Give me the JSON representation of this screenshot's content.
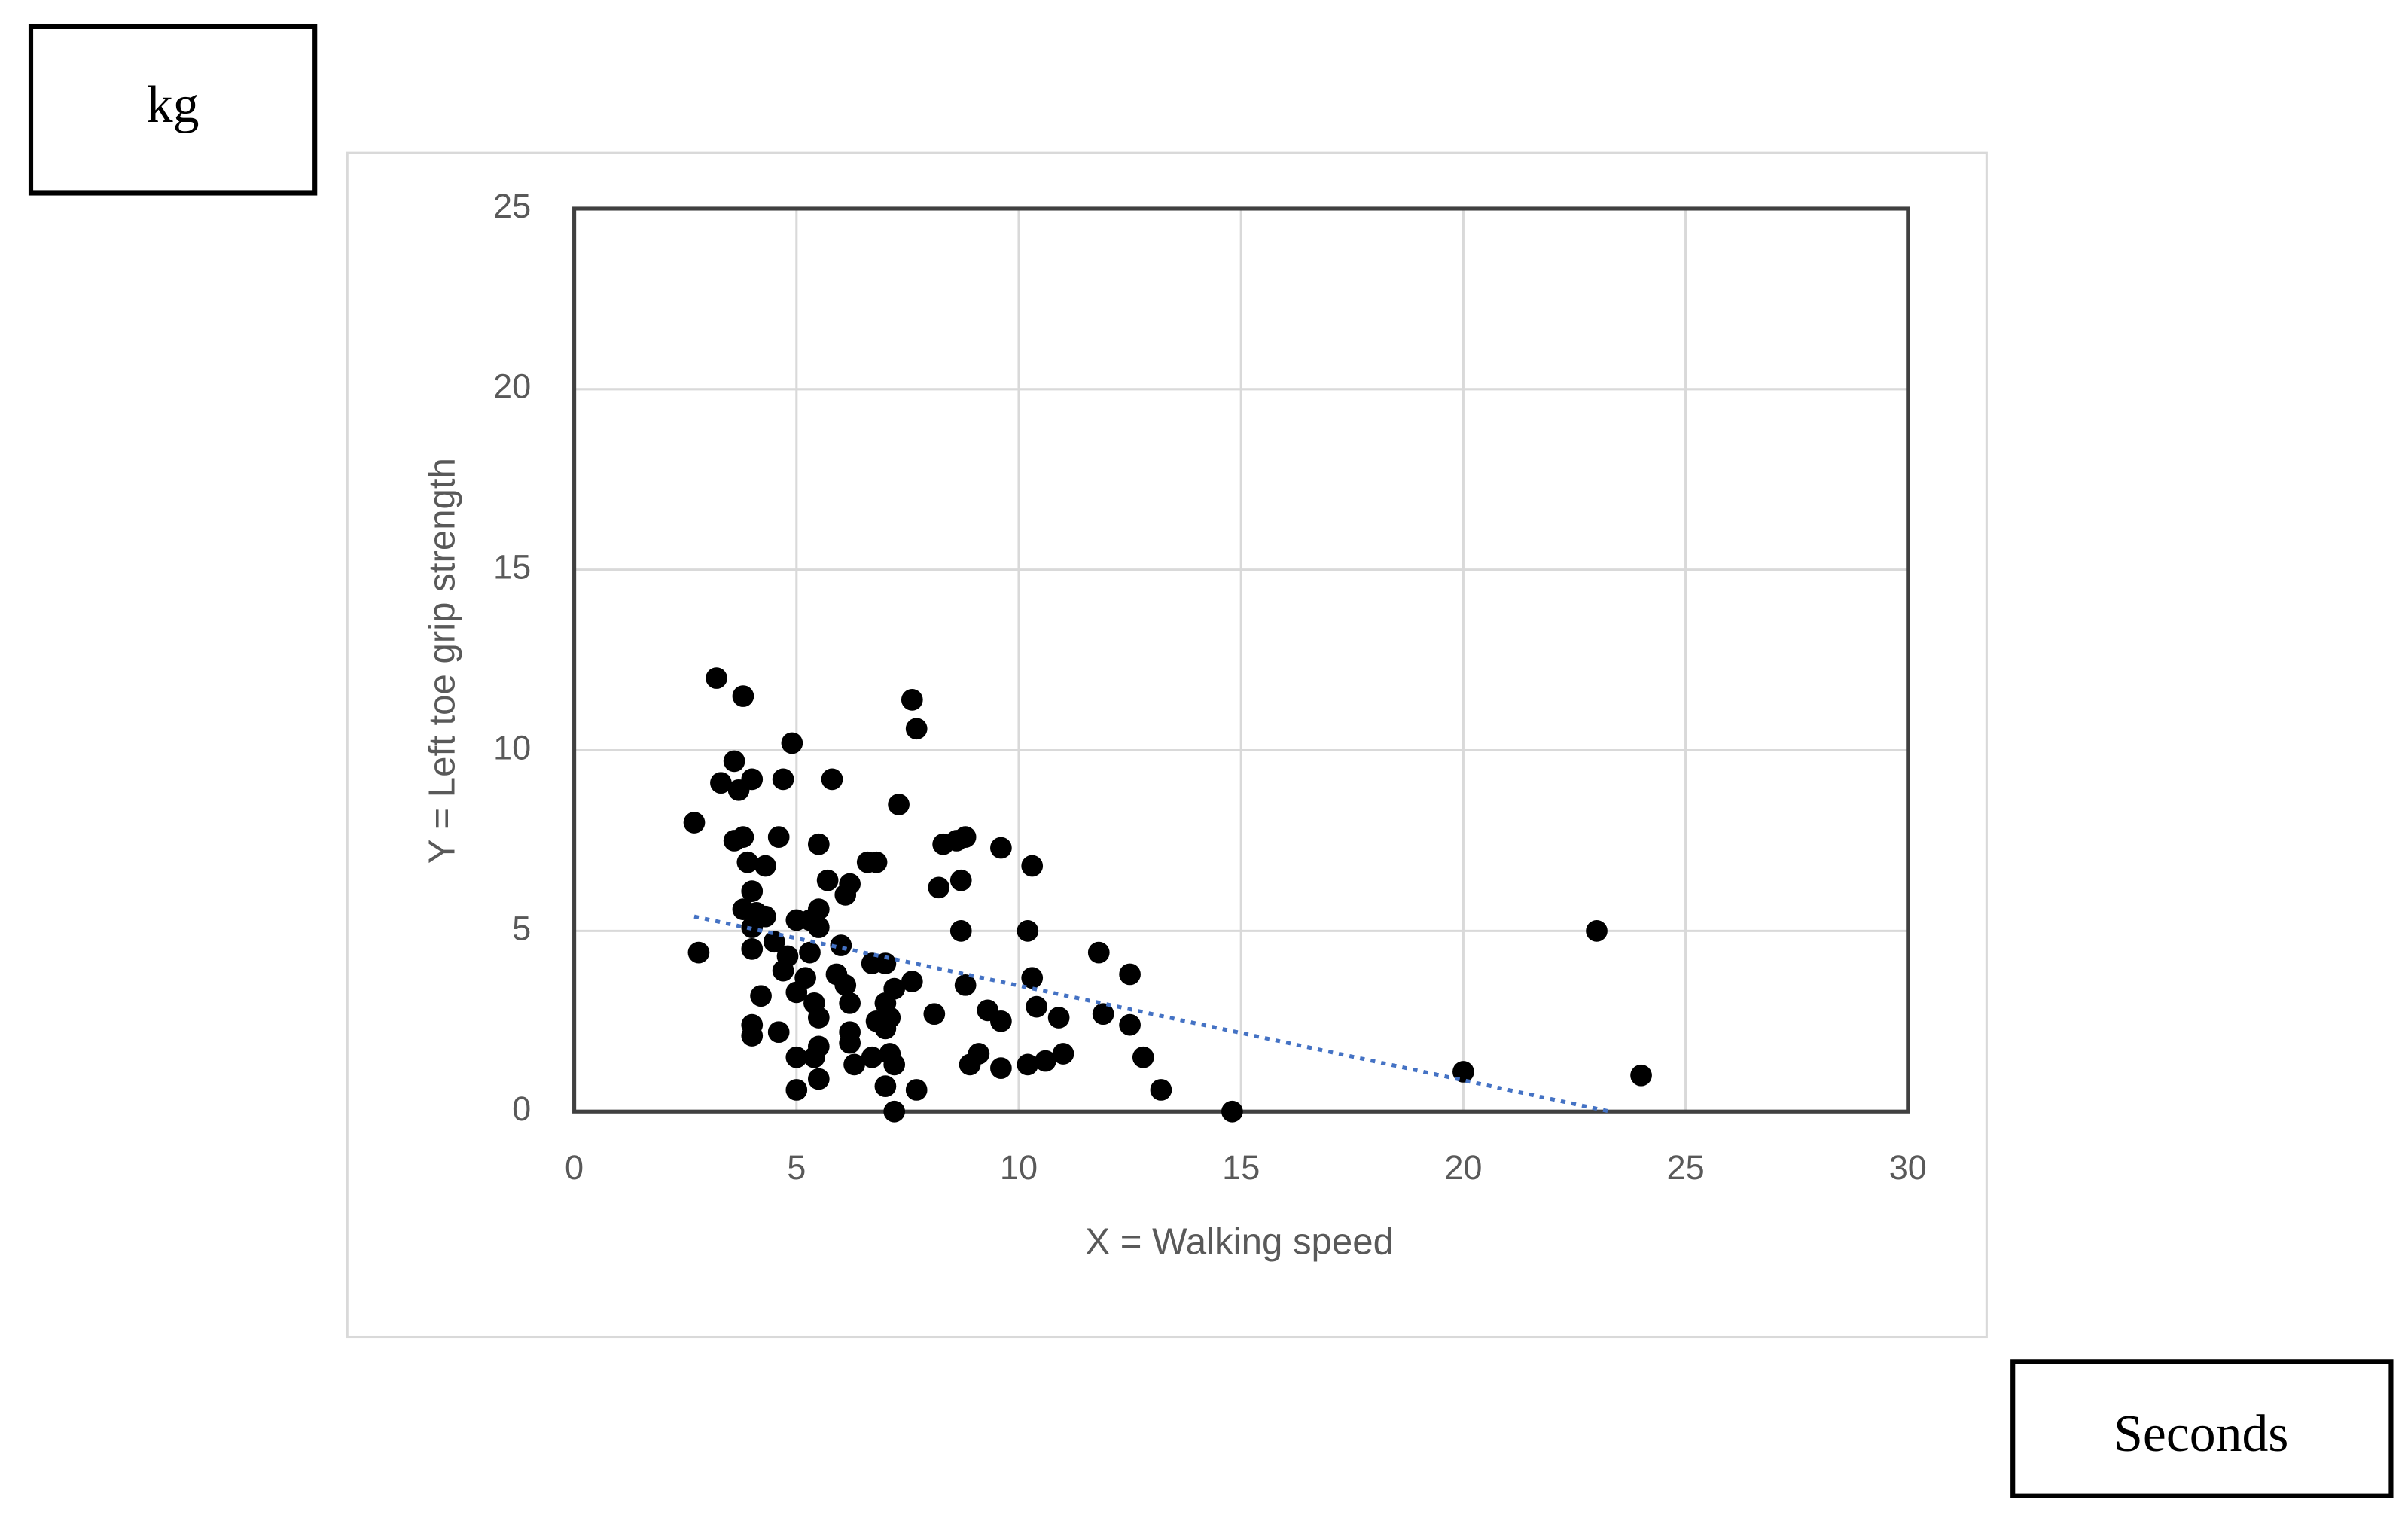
{
  "y_unit_label": "kg",
  "x_unit_label": "Seconds",
  "chart_data": {
    "type": "scatter",
    "xlabel": "X = Walking speed",
    "ylabel": "Y = Left toe grip strength",
    "xlim": [
      0,
      30
    ],
    "ylim": [
      0,
      25
    ],
    "xticks": [
      0,
      5,
      10,
      15,
      20,
      25,
      30
    ],
    "yticks": [
      0,
      5,
      10,
      15,
      20,
      25
    ],
    "grid": true,
    "series": [
      {
        "color": "#000000",
        "x": [
          3.2,
          3.8,
          7.6,
          7.7,
          4.9,
          3.6,
          3.3,
          4.0,
          4.7,
          5.8,
          3.7,
          7.3,
          2.7,
          3.6,
          3.8,
          4.6,
          5.5,
          8.3,
          8.6,
          8.8,
          9.6,
          10.3,
          3.9,
          4.3,
          6.6,
          6.8,
          5.7,
          6.2,
          6.1,
          8.2,
          8.7,
          4.0,
          3.8,
          4.1,
          4.3,
          5.5,
          5.0,
          5.3,
          5.5,
          4.0,
          8.7,
          10.2,
          23.0,
          2.8,
          4.0,
          4.5,
          4.8,
          5.3,
          6.0,
          6.7,
          7.0,
          11.8,
          4.7,
          5.2,
          5.9,
          6.1,
          7.6,
          7.2,
          8.8,
          10.3,
          12.5,
          4.2,
          5.0,
          5.4,
          6.2,
          7.0,
          9.3,
          10.4,
          10.9,
          11.9,
          4.0,
          5.5,
          6.8,
          7.1,
          8.1,
          9.6,
          12.5,
          4.0,
          4.6,
          6.2,
          7.0,
          6.2,
          5.5,
          5.0,
          5.4,
          6.7,
          7.1,
          9.1,
          11.0,
          12.8,
          6.3,
          7.2,
          8.9,
          9.6,
          10.2,
          10.6,
          20.0,
          24.0,
          5.5,
          5.0,
          7.0,
          7.7,
          13.2,
          7.2,
          14.8
        ],
        "values": [
          12.0,
          11.5,
          11.4,
          10.6,
          10.2,
          9.7,
          9.1,
          9.2,
          9.2,
          9.2,
          8.9,
          8.5,
          8.0,
          7.5,
          7.6,
          7.6,
          7.4,
          7.4,
          7.5,
          7.6,
          7.3,
          6.8,
          6.9,
          6.8,
          6.9,
          6.9,
          6.4,
          6.3,
          6.0,
          6.2,
          6.4,
          6.1,
          5.6,
          5.5,
          5.4,
          5.6,
          5.3,
          5.3,
          5.1,
          5.1,
          5.0,
          5.0,
          5.0,
          4.4,
          4.5,
          4.7,
          4.3,
          4.4,
          4.6,
          4.1,
          4.1,
          4.4,
          3.9,
          3.7,
          3.8,
          3.5,
          3.6,
          3.4,
          3.5,
          3.7,
          3.8,
          3.2,
          3.3,
          3.0,
          3.0,
          3.0,
          2.8,
          2.9,
          2.6,
          2.7,
          2.4,
          2.6,
          2.5,
          2.6,
          2.7,
          2.5,
          2.4,
          2.1,
          2.2,
          2.2,
          2.3,
          1.9,
          1.8,
          1.5,
          1.5,
          1.5,
          1.6,
          1.6,
          1.6,
          1.5,
          1.3,
          1.3,
          1.3,
          1.2,
          1.3,
          1.4,
          1.1,
          1.0,
          0.9,
          0.6,
          0.7,
          0.6,
          0.6,
          0.0,
          0.0
        ]
      }
    ],
    "trendline": {
      "color": "#4472c4",
      "x": [
        2.7,
        23.3
      ],
      "values": [
        5.4,
        0
      ]
    }
  }
}
